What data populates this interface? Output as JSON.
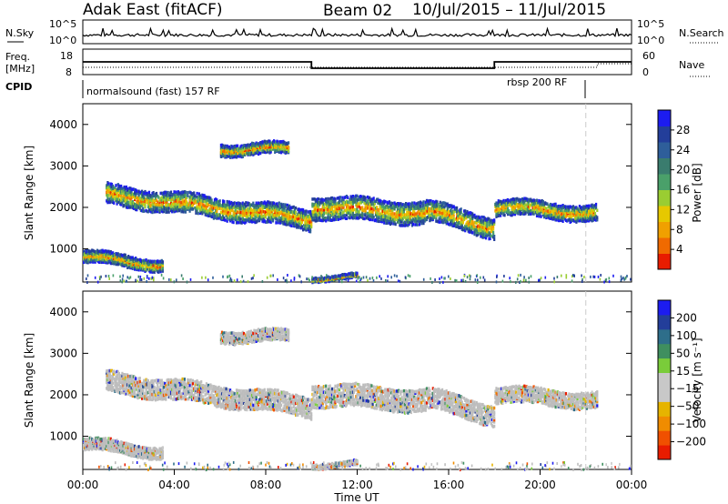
{
  "header": {
    "station": "Adak East (fitACF)",
    "beam": "Beam 02",
    "date_range": "10/Jul/2015 – 11/Jul/2015"
  },
  "strips": {
    "nsky_label": "N.Sky",
    "nsky_ticks": [
      "10^5",
      "10^0"
    ],
    "nsearch_label": "N.Search",
    "nsearch_ticks": [
      "10^5",
      "10^0"
    ],
    "freq_label": "Freq.",
    "freq_unit": "[MHz]",
    "freq_ticks": [
      "18",
      "8"
    ],
    "nave_label": "Nave",
    "nave_ticks": [
      "60",
      "0"
    ],
    "cpid_label": "CPID",
    "cpid_segments": [
      {
        "label": "normalsound (fast) 157 RF",
        "start_hour": 0
      },
      {
        "label": "rbsp 200 RF",
        "start_hour": 22
      }
    ]
  },
  "colors": {
    "power": [
      "#1c1cf0",
      "#233e9a",
      "#2e5e9a",
      "#3a7c6e",
      "#4aa06a",
      "#9acd32",
      "#e6c800",
      "#f0a000",
      "#f06a00",
      "#e81c00"
    ],
    "velocity": [
      "#1c1cf0",
      "#233e9a",
      "#2e6e8a",
      "#3f8f5f",
      "#7acc3a",
      "#c8c8c8",
      "#c8c8c8",
      "#e6b400",
      "#f08c00",
      "#f05000",
      "#e81c00"
    ],
    "ground_scatter": "#bdbdbd"
  },
  "chart_data": {
    "type": "heatmap",
    "x_ticks": [
      "00:00",
      "04:00",
      "08:00",
      "12:00",
      "16:00",
      "20:00",
      "00:00"
    ],
    "xlabel": "Time UT",
    "xlim_hours": [
      0,
      24
    ],
    "ylim_km": [
      200,
      4500
    ],
    "y_ticks": [
      "1000",
      "2000",
      "3000",
      "4000"
    ],
    "ylabel": "Slant Range [km]",
    "panels": [
      {
        "name": "power",
        "colorbar_label": "Power [dB]",
        "colorbar_ticks": [
          "28",
          "24",
          "20",
          "16",
          "12",
          "8",
          "4"
        ]
      },
      {
        "name": "velocity",
        "colorbar_label": "Velocity [m s⁻¹]",
        "colorbar_ticks": [
          "200",
          "100",
          "50",
          "15",
          "−15",
          "−50",
          "−100",
          "−200"
        ]
      }
    ],
    "frequency_mhz": [
      {
        "from_hour": 0,
        "to_hour": 10,
        "value": 13
      },
      {
        "from_hour": 10,
        "to_hour": 18,
        "value": 10.5
      },
      {
        "from_hour": 18,
        "to_hour": 24,
        "value": 13
      }
    ],
    "scatter_bands": [
      {
        "from_hour": 1,
        "to_hour": 10,
        "center_km_start": 2300,
        "center_km_end": 1700,
        "width_km": 450
      },
      {
        "from_hour": 10,
        "to_hour": 15,
        "center_km_start": 2000,
        "center_km_end": 1850,
        "width_km": 500
      },
      {
        "from_hour": 15,
        "to_hour": 18,
        "center_km_start": 1900,
        "center_km_end": 1500,
        "width_km": 450
      },
      {
        "from_hour": 18,
        "to_hour": 22.5,
        "center_km_start": 2000,
        "center_km_end": 1850,
        "width_km": 350
      },
      {
        "from_hour": 6,
        "to_hour": 9,
        "center_km_start": 3400,
        "center_km_end": 3400,
        "width_km": 250
      },
      {
        "from_hour": 0,
        "to_hour": 3.5,
        "center_km_start": 800,
        "center_km_end": 600,
        "width_km": 250
      },
      {
        "from_hour": 10,
        "to_hour": 12,
        "center_km_start": 300,
        "center_km_end": 300,
        "width_km": 80
      }
    ]
  }
}
